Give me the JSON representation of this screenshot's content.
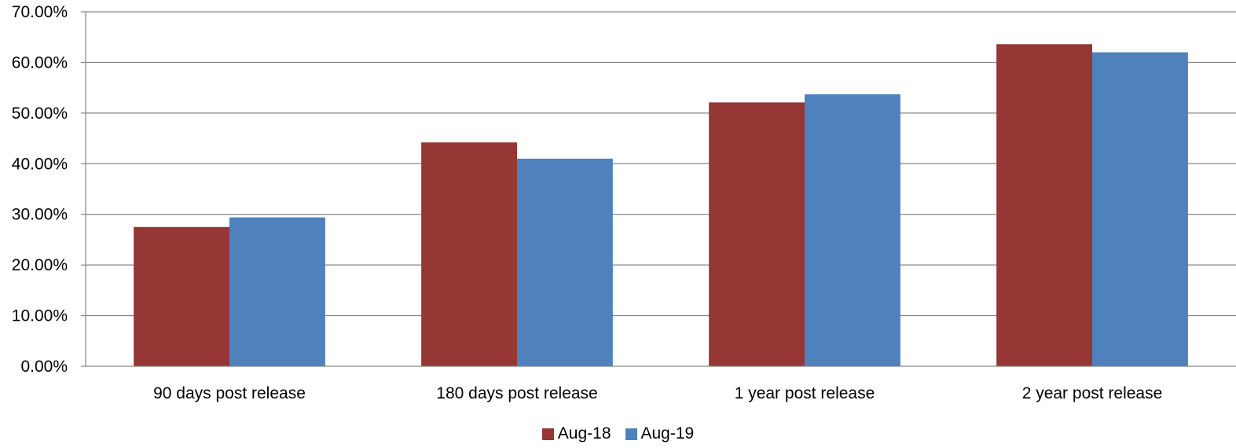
{
  "chart_data": {
    "type": "bar",
    "categories": [
      "90 days post release",
      "180 days post release",
      "1 year post release",
      "2 year post release"
    ],
    "series": [
      {
        "name": "Aug-18",
        "color": "#953735",
        "values": [
          27.5,
          44.2,
          52.1,
          63.6
        ]
      },
      {
        "name": "Aug-19",
        "color": "#4F81BD",
        "values": [
          29.4,
          41.0,
          53.7,
          62.0
        ]
      }
    ],
    "ylim": [
      0,
      70
    ],
    "yticks": [
      "0.00%",
      "10.00%",
      "20.00%",
      "30.00%",
      "40.00%",
      "50.00%",
      "60.00%",
      "70.00%"
    ],
    "grid": true,
    "legend_position": "bottom"
  }
}
